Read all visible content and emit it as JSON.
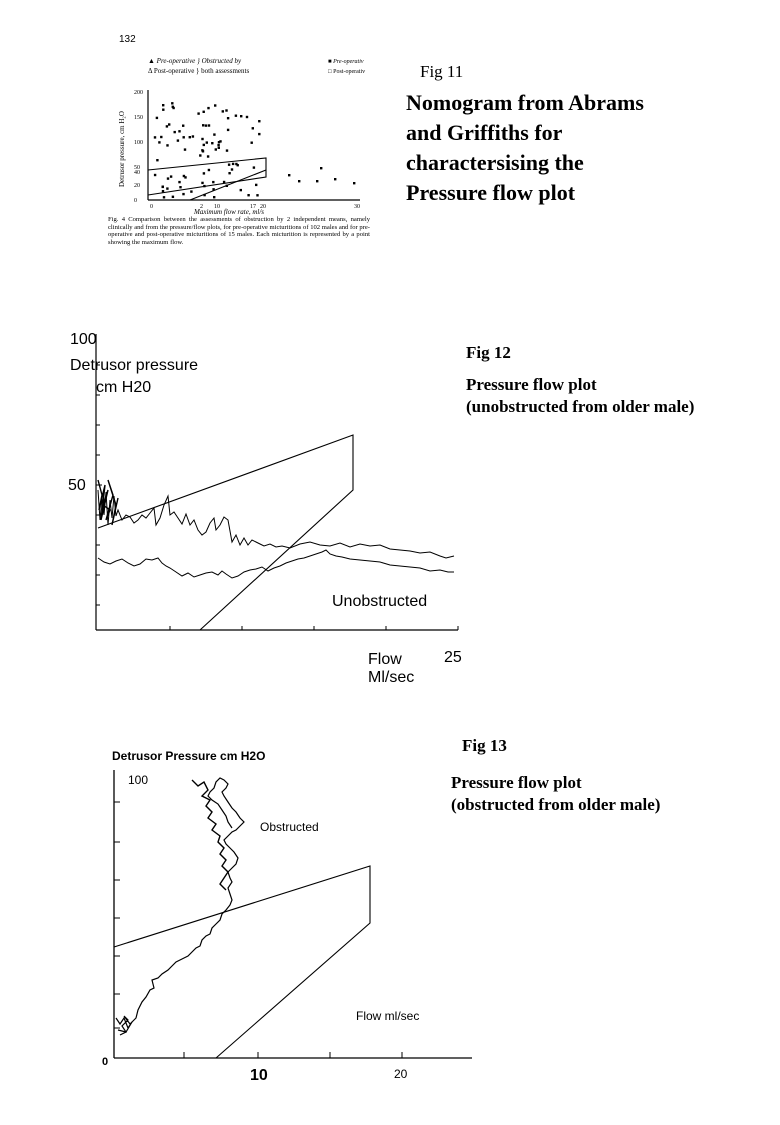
{
  "page_number": "132",
  "fig11": {
    "label": "Fig 11",
    "title": "Nomogram from Abrams\nand Griffiths for\ncharactersising the\nPressure flow plot",
    "inset": {
      "legend_row1": "▲ Pre-operative } Obstructed by",
      "legend_row2": "Δ Post-operative } both assessments",
      "legend_right1": "■ Pre-operativ",
      "legend_right2": "□ Post-operativ",
      "y_axis_label": "Detrusor pressure, cm H₂O",
      "y_ticks": [
        "200",
        "150",
        "100",
        "50",
        "40",
        "20",
        "0"
      ],
      "x_ticks": [
        "0",
        "2",
        "10",
        "17",
        "20",
        "30"
      ],
      "x_axis_label": "Maximum flow rate, ml/s",
      "caption": "Fig. 4  Comparison between the assessments of obstruction by 2 independent means, namely clinically and from the pressure/flow plots, for pre-operative micturitions of 102 males and for pre-operative and post-operative micturitions of 15 males. Each micturition is represented by a point showing the maximum flow."
    }
  },
  "fig12": {
    "label": "Fig 12",
    "caption": "Pressure flow plot\n(unobstructed from older male)",
    "y_top": "100",
    "y_mid": "50",
    "y_label_line1": "Detrusor pressure",
    "y_label_line2": "cm H20",
    "annotation": "Unobstructed",
    "x_label_line1": "Flow",
    "x_label_line2": "Ml/sec",
    "x_max": "25"
  },
  "fig13": {
    "label": "Fig 13",
    "caption": "Pressure flow plot\n(obstructed from older male)",
    "y_label": "Detrusor Pressure  cm H2O",
    "y_top": "100",
    "annotation": "Obstructed",
    "x_label": "Flow ml/sec",
    "origin": "0",
    "x_tick_10": "10",
    "x_tick_20": "20"
  }
}
